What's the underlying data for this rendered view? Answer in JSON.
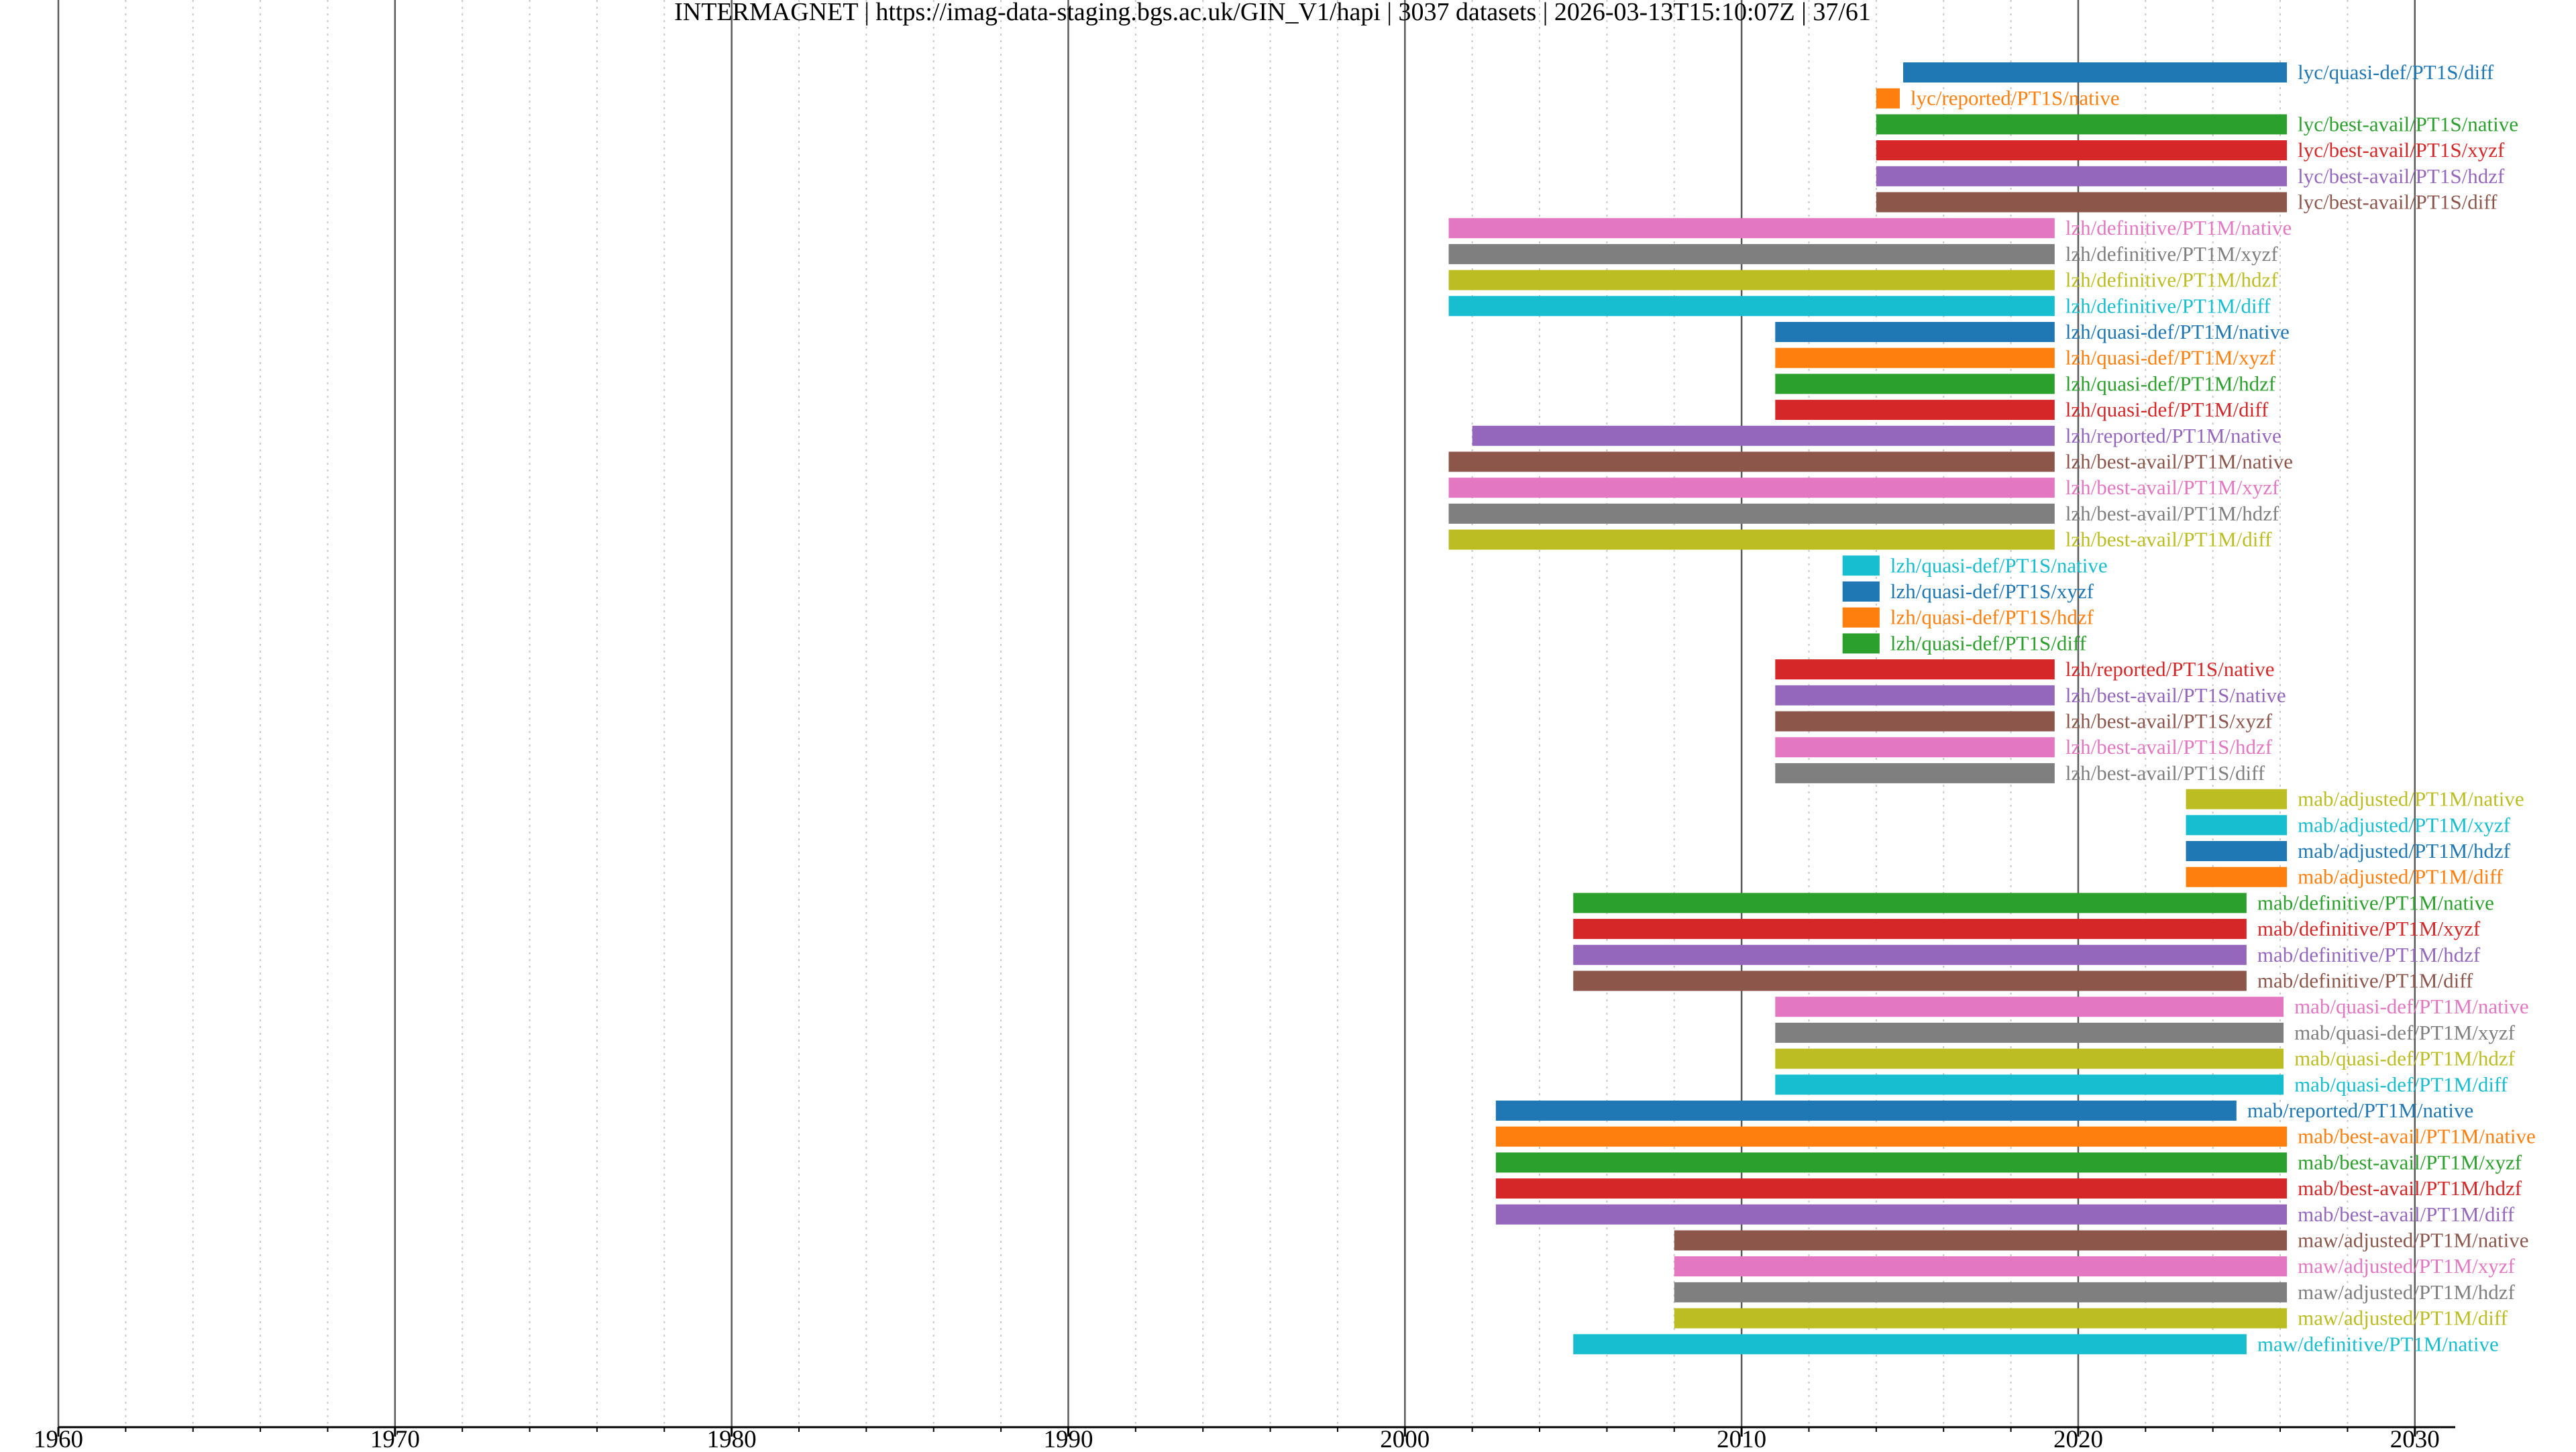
{
  "chart_data": {
    "type": "timeline",
    "title": "INTERMAGNET | https://imag-data-staging.bgs.ac.uk/GIN_V1/hapi | 3037 datasets | 2026-03-13T15:10:07Z | 37/61",
    "xlabel": "",
    "ylabel": "",
    "xlim": [
      1960,
      2031.2
    ],
    "x_major_ticks": [
      1960,
      1970,
      1980,
      1990,
      2000,
      2010,
      2020,
      2030
    ],
    "x_minor_step": 2,
    "grid": true,
    "palette": [
      "#1f77b4",
      "#ff7f0e",
      "#2ca02c",
      "#d62728",
      "#9467bd",
      "#8c564b",
      "#e377c2",
      "#7f7f7f",
      "#bcbd22",
      "#17becf"
    ],
    "series": [
      {
        "name": "lyc/quasi-def/PT1S/diff",
        "start": 2014.8,
        "end": 2026.2
      },
      {
        "name": "lyc/reported/PT1S/native",
        "start": 2014.0,
        "end": 2014.7
      },
      {
        "name": "lyc/best-avail/PT1S/native",
        "start": 2014.0,
        "end": 2026.2
      },
      {
        "name": "lyc/best-avail/PT1S/xyzf",
        "start": 2014.0,
        "end": 2026.2
      },
      {
        "name": "lyc/best-avail/PT1S/hdzf",
        "start": 2014.0,
        "end": 2026.2
      },
      {
        "name": "lyc/best-avail/PT1S/diff",
        "start": 2014.0,
        "end": 2026.2
      },
      {
        "name": "lzh/definitive/PT1M/native",
        "start": 2001.3,
        "end": 2019.3
      },
      {
        "name": "lzh/definitive/PT1M/xyzf",
        "start": 2001.3,
        "end": 2019.3
      },
      {
        "name": "lzh/definitive/PT1M/hdzf",
        "start": 2001.3,
        "end": 2019.3
      },
      {
        "name": "lzh/definitive/PT1M/diff",
        "start": 2001.3,
        "end": 2019.3
      },
      {
        "name": "lzh/quasi-def/PT1M/native",
        "start": 2011.0,
        "end": 2019.3
      },
      {
        "name": "lzh/quasi-def/PT1M/xyzf",
        "start": 2011.0,
        "end": 2019.3
      },
      {
        "name": "lzh/quasi-def/PT1M/hdzf",
        "start": 2011.0,
        "end": 2019.3
      },
      {
        "name": "lzh/quasi-def/PT1M/diff",
        "start": 2011.0,
        "end": 2019.3
      },
      {
        "name": "lzh/reported/PT1M/native",
        "start": 2002.0,
        "end": 2019.3
      },
      {
        "name": "lzh/best-avail/PT1M/native",
        "start": 2001.3,
        "end": 2019.3
      },
      {
        "name": "lzh/best-avail/PT1M/xyzf",
        "start": 2001.3,
        "end": 2019.3
      },
      {
        "name": "lzh/best-avail/PT1M/hdzf",
        "start": 2001.3,
        "end": 2019.3
      },
      {
        "name": "lzh/best-avail/PT1M/diff",
        "start": 2001.3,
        "end": 2019.3
      },
      {
        "name": "lzh/quasi-def/PT1S/native",
        "start": 2013.0,
        "end": 2014.1
      },
      {
        "name": "lzh/quasi-def/PT1S/xyzf",
        "start": 2013.0,
        "end": 2014.1
      },
      {
        "name": "lzh/quasi-def/PT1S/hdzf",
        "start": 2013.0,
        "end": 2014.1
      },
      {
        "name": "lzh/quasi-def/PT1S/diff",
        "start": 2013.0,
        "end": 2014.1
      },
      {
        "name": "lzh/reported/PT1S/native",
        "start": 2011.0,
        "end": 2019.3
      },
      {
        "name": "lzh/best-avail/PT1S/native",
        "start": 2011.0,
        "end": 2019.3
      },
      {
        "name": "lzh/best-avail/PT1S/xyzf",
        "start": 2011.0,
        "end": 2019.3
      },
      {
        "name": "lzh/best-avail/PT1S/hdzf",
        "start": 2011.0,
        "end": 2019.3
      },
      {
        "name": "lzh/best-avail/PT1S/diff",
        "start": 2011.0,
        "end": 2019.3
      },
      {
        "name": "mab/adjusted/PT1M/native",
        "start": 2023.2,
        "end": 2026.2
      },
      {
        "name": "mab/adjusted/PT1M/xyzf",
        "start": 2023.2,
        "end": 2026.2
      },
      {
        "name": "mab/adjusted/PT1M/hdzf",
        "start": 2023.2,
        "end": 2026.2
      },
      {
        "name": "mab/adjusted/PT1M/diff",
        "start": 2023.2,
        "end": 2026.2
      },
      {
        "name": "mab/definitive/PT1M/native",
        "start": 2005.0,
        "end": 2025.0
      },
      {
        "name": "mab/definitive/PT1M/xyzf",
        "start": 2005.0,
        "end": 2025.0
      },
      {
        "name": "mab/definitive/PT1M/hdzf",
        "start": 2005.0,
        "end": 2025.0
      },
      {
        "name": "mab/definitive/PT1M/diff",
        "start": 2005.0,
        "end": 2025.0
      },
      {
        "name": "mab/quasi-def/PT1M/native",
        "start": 2011.0,
        "end": 2026.1
      },
      {
        "name": "mab/quasi-def/PT1M/xyzf",
        "start": 2011.0,
        "end": 2026.1
      },
      {
        "name": "mab/quasi-def/PT1M/hdzf",
        "start": 2011.0,
        "end": 2026.1
      },
      {
        "name": "mab/quasi-def/PT1M/diff",
        "start": 2011.0,
        "end": 2026.1
      },
      {
        "name": "mab/reported/PT1M/native",
        "start": 2002.7,
        "end": 2024.7
      },
      {
        "name": "mab/best-avail/PT1M/native",
        "start": 2002.7,
        "end": 2026.2
      },
      {
        "name": "mab/best-avail/PT1M/xyzf",
        "start": 2002.7,
        "end": 2026.2
      },
      {
        "name": "mab/best-avail/PT1M/hdzf",
        "start": 2002.7,
        "end": 2026.2
      },
      {
        "name": "mab/best-avail/PT1M/diff",
        "start": 2002.7,
        "end": 2026.2
      },
      {
        "name": "maw/adjusted/PT1M/native",
        "start": 2008.0,
        "end": 2026.2
      },
      {
        "name": "maw/adjusted/PT1M/xyzf",
        "start": 2008.0,
        "end": 2026.2
      },
      {
        "name": "maw/adjusted/PT1M/hdzf",
        "start": 2008.0,
        "end": 2026.2
      },
      {
        "name": "maw/adjusted/PT1M/diff",
        "start": 2008.0,
        "end": 2026.2
      },
      {
        "name": "maw/definitive/PT1M/native",
        "start": 2005.0,
        "end": 2025.0
      }
    ]
  }
}
